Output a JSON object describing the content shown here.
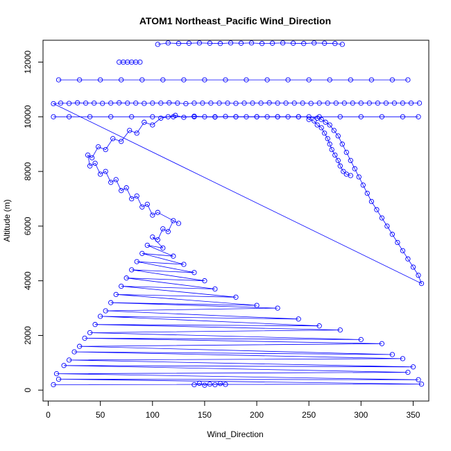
{
  "chart_data": {
    "type": "scatter",
    "title": "ATOM1 Northeast_Pacific Wind_Direction",
    "xlabel": "Wind_Direction",
    "ylabel": "Altitude (m)",
    "xlim": [
      -5,
      365
    ],
    "ylim": [
      -400,
      12800
    ],
    "x_ticks": [
      0,
      50,
      100,
      150,
      200,
      250,
      300,
      350
    ],
    "y_ticks": [
      0,
      2000,
      4000,
      6000,
      8000,
      10000,
      12000
    ],
    "grid": false,
    "legend": "none",
    "series": [
      {
        "style": "points connected by lines",
        "color": "#0000ff",
        "marker": "open-circle",
        "x": [
          5,
          358,
          10,
          355,
          8,
          345,
          15,
          350,
          20,
          340,
          25,
          330,
          30,
          320,
          35,
          300,
          40,
          280,
          45,
          260,
          50,
          240,
          55,
          220,
          60,
          200,
          65,
          180,
          70,
          160,
          75,
          150,
          80,
          140,
          85,
          130,
          90,
          120,
          95,
          110,
          100,
          105,
          110,
          115,
          120,
          125,
          105,
          100,
          95,
          90,
          85,
          80,
          75,
          70,
          65,
          60,
          55,
          50,
          45,
          40,
          38,
          42,
          48,
          55,
          62,
          70,
          78,
          85,
          92,
          100,
          108,
          115,
          122,
          130,
          140,
          150,
          160,
          170,
          180,
          190,
          200,
          210,
          220,
          230,
          240,
          250,
          258,
          262,
          266,
          270,
          274,
          278,
          282,
          286,
          290,
          294,
          298,
          302,
          306,
          310,
          315,
          320,
          325,
          330,
          335,
          340,
          345,
          350,
          355,
          358,
          5,
          12,
          20,
          28,
          36,
          44,
          52,
          60,
          68,
          76,
          84,
          92,
          100,
          108,
          116,
          124,
          132,
          140,
          148,
          156,
          164,
          172,
          180,
          188,
          196,
          204,
          212,
          220,
          228,
          236,
          244,
          252,
          260,
          268,
          276,
          284,
          292,
          300,
          308,
          316,
          324,
          332,
          340,
          348,
          356
        ],
        "y": [
          200,
          220,
          400,
          380,
          600,
          650,
          900,
          850,
          1100,
          1150,
          1400,
          1300,
          1600,
          1700,
          1900,
          1850,
          2100,
          2200,
          2400,
          2350,
          2700,
          2600,
          2900,
          3000,
          3200,
          3100,
          3500,
          3400,
          3800,
          3700,
          4100,
          4000,
          4400,
          4300,
          4700,
          4600,
          5000,
          4900,
          5300,
          5200,
          5600,
          5500,
          5900,
          5800,
          6200,
          6100,
          6500,
          6400,
          6800,
          6700,
          7100,
          7000,
          7400,
          7300,
          7700,
          7600,
          8000,
          7900,
          8300,
          8200,
          8600,
          8500,
          8900,
          8800,
          9200,
          9100,
          9500,
          9400,
          9800,
          9700,
          9950,
          10000,
          10050,
          9980,
          10020,
          10000,
          9990,
          10010,
          10000,
          10000,
          10000,
          10000,
          10000,
          10000,
          10000,
          10000,
          9950,
          9900,
          9800,
          9700,
          9500,
          9300,
          9000,
          8700,
          8400,
          8100,
          7800,
          7500,
          7200,
          6900,
          6600,
          6300,
          6000,
          5700,
          5400,
          5100,
          4800,
          4500,
          4200,
          3900,
          10480,
          10500,
          10490,
          10510,
          10500,
          10500,
          10490,
          10500,
          10510,
          10500,
          10500,
          10490,
          10500,
          10500,
          10510,
          10500,
          10480,
          10500,
          10500,
          10500,
          10500,
          10500,
          10490,
          10500,
          10500,
          10500,
          10510,
          10500,
          10500,
          10500,
          10500,
          10490,
          10500,
          10500,
          10500,
          10500,
          10500,
          10500,
          10500,
          10500,
          10500,
          10500,
          10500,
          10500,
          10500
        ]
      },
      {
        "style": "points connected by lines",
        "color": "#0000ff",
        "marker": "open-circle",
        "x": [
          5,
          20,
          40,
          60,
          80,
          100,
          120,
          140,
          160,
          180,
          200,
          220,
          240,
          260,
          280,
          300,
          320,
          340,
          355
        ],
        "y": [
          10000,
          10000,
          10000,
          10000,
          10000,
          10000,
          10000,
          10000,
          10000,
          10000,
          10000,
          10000,
          10000,
          10000,
          10000,
          10000,
          10000,
          10000,
          10000
        ]
      },
      {
        "style": "points connected by lines",
        "color": "#0000ff",
        "marker": "open-circle",
        "x": [
          10,
          30,
          50,
          70,
          90,
          110,
          130,
          150,
          170,
          190,
          210,
          230,
          250,
          270,
          290,
          310,
          330,
          345
        ],
        "y": [
          11350,
          11350,
          11350,
          11350,
          11350,
          11350,
          11350,
          11350,
          11350,
          11350,
          11350,
          11350,
          11350,
          11350,
          11350,
          11350,
          11350,
          11350
        ]
      },
      {
        "style": "points connected by lines",
        "color": "#0000ff",
        "marker": "open-circle",
        "x": [
          105,
          115,
          125,
          135,
          145,
          155,
          165,
          175,
          185,
          195,
          205,
          215,
          225,
          235,
          245,
          255,
          265,
          275,
          282
        ],
        "y": [
          12650,
          12700,
          12680,
          12690,
          12700,
          12690,
          12680,
          12700,
          12690,
          12700,
          12680,
          12690,
          12700,
          12690,
          12680,
          12700,
          12690,
          12680,
          12650
        ]
      },
      {
        "style": "points connected by lines",
        "color": "#0000ff",
        "marker": "open-circle",
        "x": [
          68,
          72,
          76,
          80,
          84,
          88
        ],
        "y": [
          12000,
          12000,
          12000,
          12000,
          12000,
          12000
        ]
      },
      {
        "style": "points connected by lines",
        "color": "#0000ff",
        "marker": "open-circle",
        "x": [
          250,
          255,
          258,
          262,
          265,
          268,
          270,
          272,
          275,
          278,
          280,
          283,
          286,
          290
        ],
        "y": [
          9900,
          9850,
          9700,
          9600,
          9400,
          9200,
          9000,
          8800,
          8600,
          8400,
          8200,
          8000,
          7900,
          7850
        ]
      },
      {
        "style": "points connected by lines",
        "color": "#0000ff",
        "marker": "open-circle",
        "x": [
          140,
          145,
          150,
          155,
          160,
          165,
          170
        ],
        "y": [
          200,
          250,
          180,
          220,
          200,
          240,
          210
        ]
      }
    ]
  }
}
